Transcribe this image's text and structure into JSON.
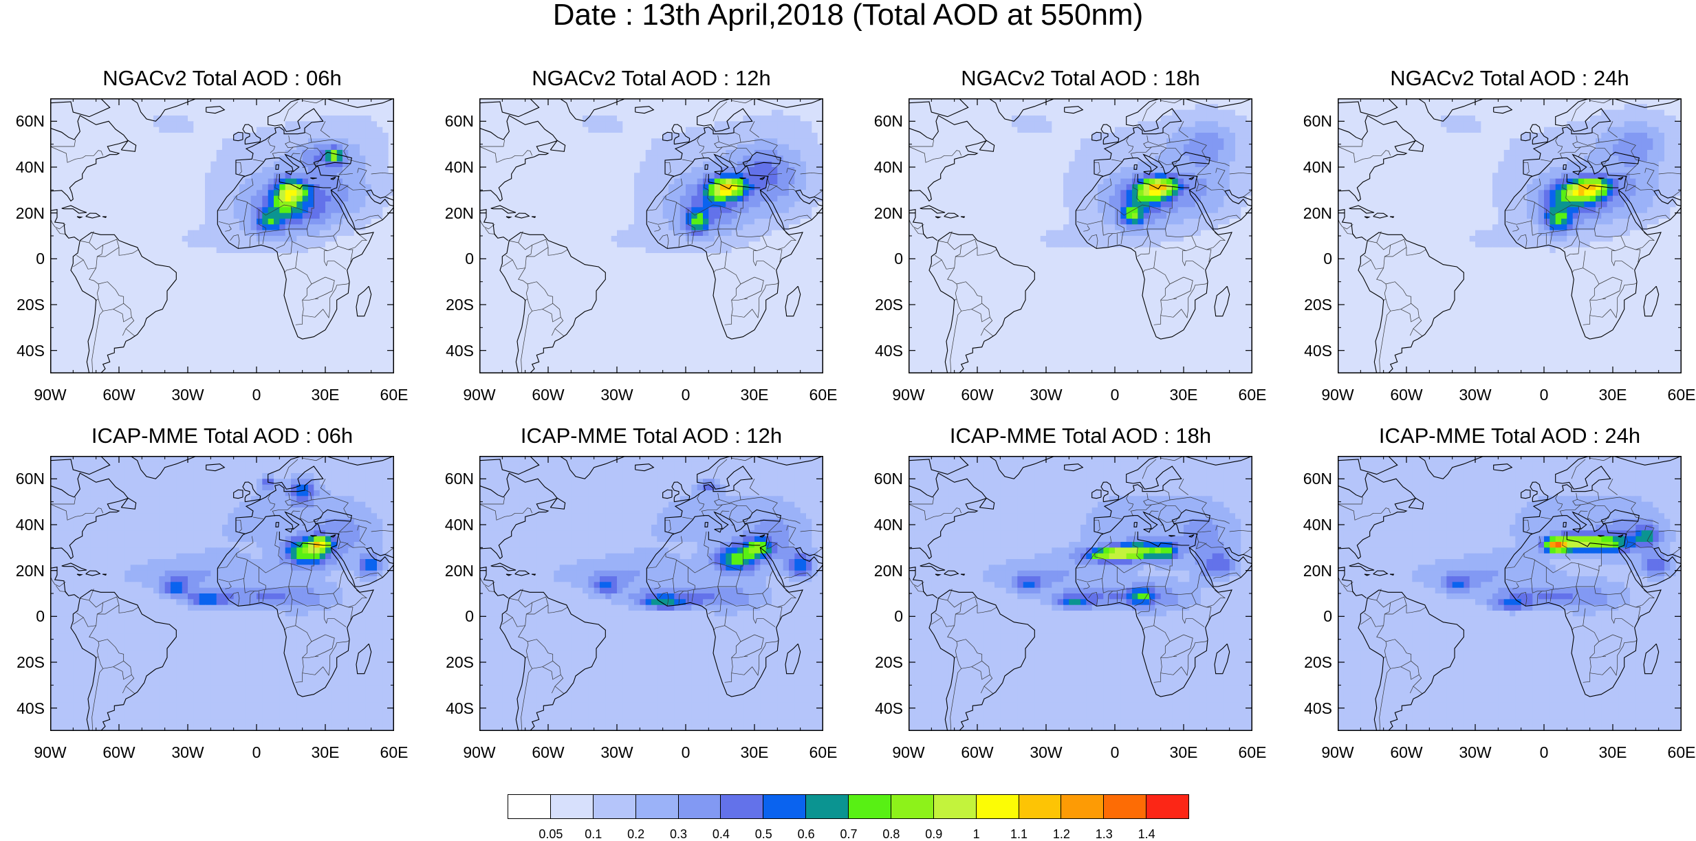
{
  "title": "Date : 13th April,2018 (Total AOD at 550nm)",
  "lat_ticks": [
    "60N",
    "40N",
    "20N",
    "0",
    "20S",
    "40S"
  ],
  "lat_values": [
    60,
    40,
    20,
    0,
    -20,
    -40
  ],
  "lon_ticks": [
    "90W",
    "60W",
    "30W",
    "0",
    "30E",
    "60E"
  ],
  "lon_values": [
    -90,
    -60,
    -30,
    0,
    30,
    60
  ],
  "extent": {
    "lon": [
      -90,
      60
    ],
    "lat": [
      -50,
      70
    ]
  },
  "panels": [
    {
      "title": "NGACv2 Total AOD : 06h",
      "model": "NGACv2",
      "hour": "06h"
    },
    {
      "title": "NGACv2 Total AOD : 12h",
      "model": "NGACv2",
      "hour": "12h"
    },
    {
      "title": "NGACv2 Total AOD : 18h",
      "model": "NGACv2",
      "hour": "18h"
    },
    {
      "title": "NGACv2 Total AOD : 24h",
      "model": "NGACv2",
      "hour": "24h"
    },
    {
      "title": "ICAP-MME Total AOD : 06h",
      "model": "ICAP-MME",
      "hour": "06h"
    },
    {
      "title": "ICAP-MME Total AOD : 12h",
      "model": "ICAP-MME",
      "hour": "12h"
    },
    {
      "title": "ICAP-MME Total AOD : 18h",
      "model": "ICAP-MME",
      "hour": "18h"
    },
    {
      "title": "ICAP-MME Total AOD : 24h",
      "model": "ICAP-MME",
      "hour": "24h"
    }
  ],
  "colorbar": {
    "labels": [
      "0.05",
      "0.1",
      "0.2",
      "0.3",
      "0.4",
      "0.5",
      "0.6",
      "0.7",
      "0.8",
      "0.9",
      "1",
      "1.1",
      "1.2",
      "1.3",
      "1.4"
    ],
    "colors": [
      "#ffffff",
      "#d7e0fc",
      "#b5c5fa",
      "#9bb2f8",
      "#8299f3",
      "#6372ea",
      "#0a63ef",
      "#0b9491",
      "#58f014",
      "#8df21a",
      "#c3f33c",
      "#fcfc05",
      "#fdc405",
      "#fd9b05",
      "#fd6c05",
      "#fc2616"
    ]
  }
}
